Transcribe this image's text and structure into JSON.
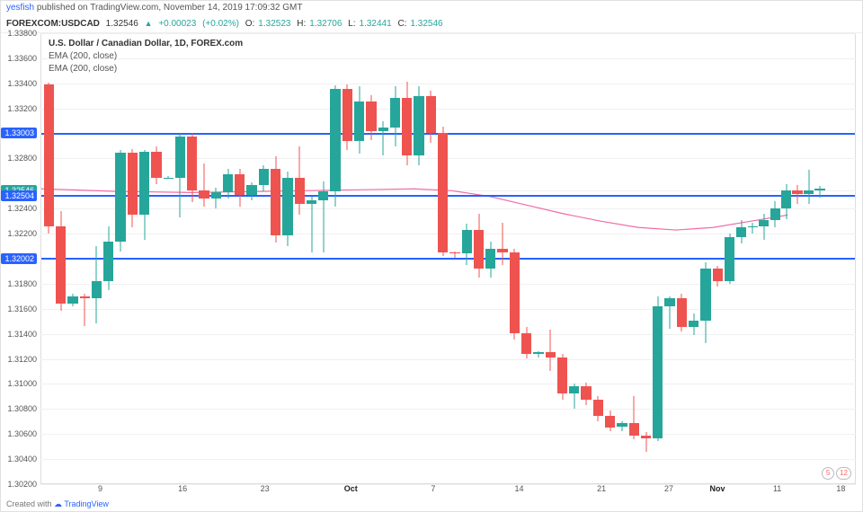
{
  "header": {
    "author": "yesfish",
    "published_text": " published on ",
    "site": "TradingView.com",
    "datetime": ", November 14, 2019 17:09:32 GMT"
  },
  "quote": {
    "symbol": "FOREXCOM:USDCAD",
    "last": " 1.32546 ",
    "change": "+0.00023",
    "change_pct": " (+0.02%)",
    "o_label": " O:",
    "o": "1.32523",
    "h_label": " H:",
    "h": "1.32706",
    "l_label": " L:",
    "l": "1.32441",
    "c_label": " C:",
    "c": "1.32546"
  },
  "legend": {
    "title": "U.S. Dollar / Canadian Dollar, 1D, FOREX.com",
    "line1": "EMA (200, close)",
    "line2": "EMA (200, close)"
  },
  "footer": {
    "prefix": "Created with ",
    "brand": "TradingView"
  },
  "chart": {
    "type": "candlestick",
    "ymin": 1.302,
    "ymax": 1.338,
    "yticks": [
      1.302,
      1.304,
      1.306,
      1.308,
      1.31,
      1.312,
      1.314,
      1.316,
      1.318,
      1.32002,
      1.322,
      1.324,
      1.32546,
      1.328,
      1.33003,
      1.332,
      1.334,
      1.336,
      1.338
    ],
    "xticks": [
      {
        "x": 0.08,
        "label": "9"
      },
      {
        "x": 0.19,
        "label": "16"
      },
      {
        "x": 0.3,
        "label": "23"
      },
      {
        "x": 0.415,
        "label": "Oct",
        "bold": true
      },
      {
        "x": 0.525,
        "label": "7"
      },
      {
        "x": 0.64,
        "label": "14"
      },
      {
        "x": 0.75,
        "label": "21"
      },
      {
        "x": 0.84,
        "label": "27"
      },
      {
        "x": 0.905,
        "label": "Nov",
        "bold": true
      },
      {
        "x": 0.985,
        "label": "11"
      },
      {
        "x": 1.07,
        "label": "18"
      }
    ],
    "colors": {
      "up": "#26a69a",
      "down": "#ef5350",
      "grid": "#f0f0f0",
      "hline": "#2962ff",
      "ema": "#f26ba5",
      "bg": "#ffffff"
    },
    "hlines": [
      {
        "value": 1.33003,
        "label": "1.33003"
      },
      {
        "value": 1.32504,
        "label": "1.32504"
      },
      {
        "value": 1.32002,
        "label": "1.32002"
      }
    ],
    "pricebadges": [
      {
        "value": 1.33003,
        "label": "1.33003",
        "bg": "#2962ff"
      },
      {
        "value": 1.32546,
        "label": "1.32546",
        "bg": "#26a69a"
      },
      {
        "value": 1.32504,
        "label": "1.32504",
        "bg": "#2962ff"
      },
      {
        "value": 1.32002,
        "label": "1.32002",
        "bg": "#2962ff"
      }
    ],
    "markers": [
      "5",
      "12"
    ],
    "ema": [
      [
        0.0,
        1.3256
      ],
      [
        0.05,
        1.3255
      ],
      [
        0.1,
        1.3254
      ],
      [
        0.15,
        1.32535
      ],
      [
        0.2,
        1.3253
      ],
      [
        0.25,
        1.32535
      ],
      [
        0.3,
        1.3254
      ],
      [
        0.35,
        1.32545
      ],
      [
        0.4,
        1.3255
      ],
      [
        0.45,
        1.32555
      ],
      [
        0.5,
        1.3256
      ],
      [
        0.55,
        1.32545
      ],
      [
        0.6,
        1.325
      ],
      [
        0.65,
        1.3243
      ],
      [
        0.7,
        1.3236
      ],
      [
        0.75,
        1.323
      ],
      [
        0.8,
        1.3225
      ],
      [
        0.85,
        1.3223
      ],
      [
        0.9,
        1.3225
      ],
      [
        0.95,
        1.323
      ],
      [
        1.0,
        1.3235
      ]
    ],
    "candles": [
      {
        "x": 0.01,
        "o": 1.334,
        "h": 1.3341,
        "l": 1.322,
        "c": 1.3226
      },
      {
        "x": 0.026,
        "o": 1.3226,
        "h": 1.3238,
        "l": 1.3158,
        "c": 1.3164
      },
      {
        "x": 0.042,
        "o": 1.3164,
        "h": 1.3172,
        "l": 1.3162,
        "c": 1.317
      },
      {
        "x": 0.058,
        "o": 1.317,
        "h": 1.3172,
        "l": 1.3146,
        "c": 1.3168
      },
      {
        "x": 0.074,
        "o": 1.3168,
        "h": 1.321,
        "l": 1.3148,
        "c": 1.3182
      },
      {
        "x": 0.09,
        "o": 1.3182,
        "h": 1.3226,
        "l": 1.3175,
        "c": 1.3214
      },
      {
        "x": 0.106,
        "o": 1.3214,
        "h": 1.3287,
        "l": 1.3206,
        "c": 1.3285
      },
      {
        "x": 0.122,
        "o": 1.3285,
        "h": 1.3288,
        "l": 1.3225,
        "c": 1.3235
      },
      {
        "x": 0.138,
        "o": 1.3235,
        "h": 1.3287,
        "l": 1.3215,
        "c": 1.3286
      },
      {
        "x": 0.154,
        "o": 1.3286,
        "h": 1.329,
        "l": 1.326,
        "c": 1.3265
      },
      {
        "x": 0.17,
        "o": 1.3265,
        "h": 1.3266,
        "l": 1.3264,
        "c": 1.3265
      },
      {
        "x": 0.186,
        "o": 1.3265,
        "h": 1.33,
        "l": 1.3233,
        "c": 1.3298
      },
      {
        "x": 0.202,
        "o": 1.3298,
        "h": 1.3301,
        "l": 1.3245,
        "c": 1.3255
      },
      {
        "x": 0.218,
        "o": 1.3255,
        "h": 1.3276,
        "l": 1.3242,
        "c": 1.3248
      },
      {
        "x": 0.234,
        "o": 1.3248,
        "h": 1.3257,
        "l": 1.324,
        "c": 1.3253
      },
      {
        "x": 0.25,
        "o": 1.3253,
        "h": 1.3272,
        "l": 1.3248,
        "c": 1.3268
      },
      {
        "x": 0.266,
        "o": 1.3268,
        "h": 1.3272,
        "l": 1.3242,
        "c": 1.3251
      },
      {
        "x": 0.282,
        "o": 1.3251,
        "h": 1.3261,
        "l": 1.3247,
        "c": 1.3259
      },
      {
        "x": 0.298,
        "o": 1.3259,
        "h": 1.3275,
        "l": 1.3254,
        "c": 1.3272
      },
      {
        "x": 0.314,
        "o": 1.3272,
        "h": 1.3282,
        "l": 1.3213,
        "c": 1.3219
      },
      {
        "x": 0.33,
        "o": 1.3219,
        "h": 1.327,
        "l": 1.321,
        "c": 1.3265
      },
      {
        "x": 0.346,
        "o": 1.3265,
        "h": 1.329,
        "l": 1.3235,
        "c": 1.3244
      },
      {
        "x": 0.362,
        "o": 1.3244,
        "h": 1.325,
        "l": 1.3205,
        "c": 1.3247
      },
      {
        "x": 0.378,
        "o": 1.3247,
        "h": 1.3262,
        "l": 1.3205,
        "c": 1.3254
      },
      {
        "x": 0.394,
        "o": 1.3254,
        "h": 1.3339,
        "l": 1.3242,
        "c": 1.3336
      },
      {
        "x": 0.41,
        "o": 1.3336,
        "h": 1.334,
        "l": 1.3287,
        "c": 1.3294
      },
      {
        "x": 0.426,
        "o": 1.3294,
        "h": 1.3338,
        "l": 1.3284,
        "c": 1.3326
      },
      {
        "x": 0.442,
        "o": 1.3326,
        "h": 1.3331,
        "l": 1.3295,
        "c": 1.3302
      },
      {
        "x": 0.458,
        "o": 1.3302,
        "h": 1.331,
        "l": 1.3283,
        "c": 1.3305
      },
      {
        "x": 0.474,
        "o": 1.3305,
        "h": 1.3338,
        "l": 1.329,
        "c": 1.3329
      },
      {
        "x": 0.49,
        "o": 1.3329,
        "h": 1.3342,
        "l": 1.3275,
        "c": 1.3283
      },
      {
        "x": 0.506,
        "o": 1.3283,
        "h": 1.3338,
        "l": 1.3275,
        "c": 1.333
      },
      {
        "x": 0.522,
        "o": 1.333,
        "h": 1.3335,
        "l": 1.3293,
        "c": 1.3301
      },
      {
        "x": 0.538,
        "o": 1.3301,
        "h": 1.3306,
        "l": 1.3202,
        "c": 1.3205
      },
      {
        "x": 0.554,
        "o": 1.3205,
        "h": 1.3206,
        "l": 1.3201,
        "c": 1.3204
      },
      {
        "x": 0.57,
        "o": 1.3204,
        "h": 1.3228,
        "l": 1.3195,
        "c": 1.3223
      },
      {
        "x": 0.586,
        "o": 1.3223,
        "h": 1.3236,
        "l": 1.3185,
        "c": 1.3192
      },
      {
        "x": 0.602,
        "o": 1.3192,
        "h": 1.3214,
        "l": 1.3185,
        "c": 1.3208
      },
      {
        "x": 0.618,
        "o": 1.3208,
        "h": 1.3229,
        "l": 1.3195,
        "c": 1.3205
      },
      {
        "x": 0.634,
        "o": 1.3205,
        "h": 1.3208,
        "l": 1.3135,
        "c": 1.314
      },
      {
        "x": 0.65,
        "o": 1.314,
        "h": 1.3145,
        "l": 1.312,
        "c": 1.3124
      },
      {
        "x": 0.666,
        "o": 1.3124,
        "h": 1.3126,
        "l": 1.3121,
        "c": 1.3125
      },
      {
        "x": 0.682,
        "o": 1.3125,
        "h": 1.3143,
        "l": 1.311,
        "c": 1.3121
      },
      {
        "x": 0.698,
        "o": 1.3121,
        "h": 1.3124,
        "l": 1.3087,
        "c": 1.3092
      },
      {
        "x": 0.714,
        "o": 1.3092,
        "h": 1.31,
        "l": 1.308,
        "c": 1.3098
      },
      {
        "x": 0.73,
        "o": 1.3098,
        "h": 1.3101,
        "l": 1.3083,
        "c": 1.3087
      },
      {
        "x": 0.746,
        "o": 1.3087,
        "h": 1.309,
        "l": 1.307,
        "c": 1.3074
      },
      {
        "x": 0.762,
        "o": 1.3074,
        "h": 1.3078,
        "l": 1.3062,
        "c": 1.3065
      },
      {
        "x": 0.778,
        "o": 1.3065,
        "h": 1.307,
        "l": 1.3062,
        "c": 1.3068
      },
      {
        "x": 0.794,
        "o": 1.3068,
        "h": 1.309,
        "l": 1.3055,
        "c": 1.3058
      },
      {
        "x": 0.81,
        "o": 1.3058,
        "h": 1.3061,
        "l": 1.3045,
        "c": 1.3056
      },
      {
        "x": 0.826,
        "o": 1.3056,
        "h": 1.317,
        "l": 1.3054,
        "c": 1.3162
      },
      {
        "x": 0.842,
        "o": 1.3162,
        "h": 1.317,
        "l": 1.3144,
        "c": 1.3168
      },
      {
        "x": 0.858,
        "o": 1.3168,
        "h": 1.3172,
        "l": 1.3142,
        "c": 1.3145
      },
      {
        "x": 0.874,
        "o": 1.3145,
        "h": 1.3156,
        "l": 1.3139,
        "c": 1.315
      },
      {
        "x": 0.89,
        "o": 1.315,
        "h": 1.3197,
        "l": 1.3132,
        "c": 1.3192
      },
      {
        "x": 0.906,
        "o": 1.3192,
        "h": 1.3194,
        "l": 1.3178,
        "c": 1.3182
      },
      {
        "x": 0.922,
        "o": 1.3182,
        "h": 1.322,
        "l": 1.318,
        "c": 1.3217
      },
      {
        "x": 0.938,
        "o": 1.3217,
        "h": 1.3231,
        "l": 1.3212,
        "c": 1.3225
      },
      {
        "x": 0.953,
        "o": 1.3225,
        "h": 1.3229,
        "l": 1.322,
        "c": 1.3226
      },
      {
        "x": 0.968,
        "o": 1.3226,
        "h": 1.3236,
        "l": 1.3215,
        "c": 1.3231
      },
      {
        "x": 0.983,
        "o": 1.3231,
        "h": 1.3246,
        "l": 1.3225,
        "c": 1.324
      },
      {
        "x": 0.998,
        "o": 1.324,
        "h": 1.326,
        "l": 1.3232,
        "c": 1.3255
      },
      {
        "x": 1.013,
        "o": 1.3255,
        "h": 1.3259,
        "l": 1.3244,
        "c": 1.3252
      },
      {
        "x": 1.028,
        "o": 1.3252,
        "h": 1.3271,
        "l": 1.3244,
        "c": 1.3255
      },
      {
        "x": 1.043,
        "o": 1.3255,
        "h": 1.3258,
        "l": 1.3249,
        "c": 1.3256
      }
    ]
  }
}
